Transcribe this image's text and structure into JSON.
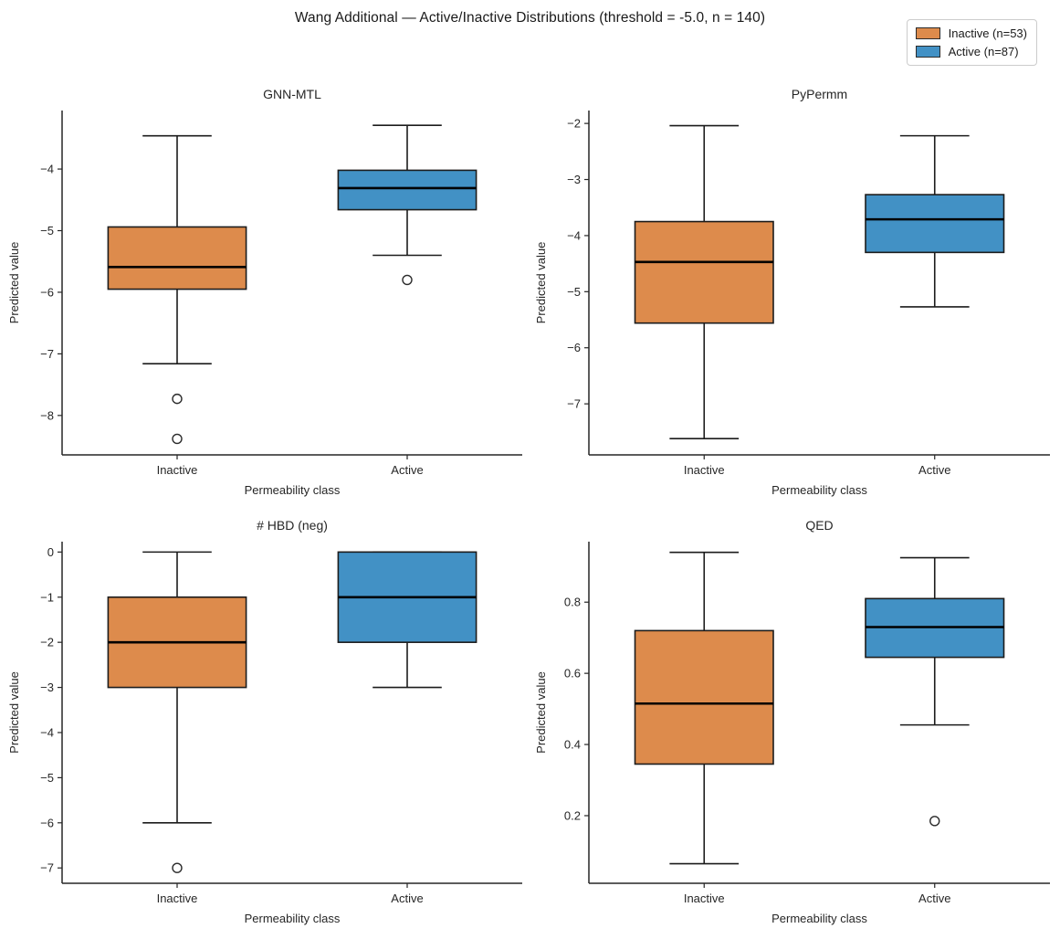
{
  "chart_data": {
    "type": "box",
    "suptitle": "Wang Additional — Active/Inactive Distributions  (threshold = -5.0, n = 140)",
    "legend": [
      {
        "label": "Inactive (n=53)",
        "color": "#dd8b4c"
      },
      {
        "label": "Active (n=87)",
        "color": "#4291c5"
      }
    ],
    "shared": {
      "xlabel": "Permeability class",
      "ylabel": "Predicted value",
      "categories": [
        "Inactive",
        "Active"
      ],
      "grid": false,
      "legend_position": "upper right"
    },
    "plots": [
      {
        "title": "GNN-MTL",
        "ylim": [
          -8.64,
          -3.05
        ],
        "yticks": [
          -4,
          -5,
          -6,
          -7,
          -8
        ],
        "boxes": [
          {
            "category": "Inactive",
            "whisker_low": -7.16,
            "q1": -5.95,
            "median": -5.59,
            "q3": -4.94,
            "whisker_high": -3.46,
            "outliers": [
              -7.73,
              -8.38
            ]
          },
          {
            "category": "Active",
            "whisker_low": -5.4,
            "q1": -4.66,
            "median": -4.31,
            "q3": -4.02,
            "whisker_high": -3.29,
            "outliers": [
              -5.8
            ]
          }
        ]
      },
      {
        "title": "PyPermm",
        "ylim": [
          -7.91,
          -1.77
        ],
        "yticks": [
          -2,
          -3,
          -4,
          -5,
          -6,
          -7
        ],
        "boxes": [
          {
            "category": "Inactive",
            "whisker_low": -7.62,
            "q1": -5.56,
            "median": -4.47,
            "q3": -3.75,
            "whisker_high": -2.04,
            "outliers": []
          },
          {
            "category": "Active",
            "whisker_low": -5.27,
            "q1": -4.3,
            "median": -3.71,
            "q3": -3.27,
            "whisker_high": -2.22,
            "outliers": []
          }
        ]
      },
      {
        "title": "# HBD (neg)",
        "ylim": [
          -7.34,
          0.23
        ],
        "yticks": [
          0,
          -1,
          -2,
          -3,
          -4,
          -5,
          -6,
          -7
        ],
        "boxes": [
          {
            "category": "Inactive",
            "whisker_low": -6,
            "q1": -3,
            "median": -2,
            "q3": -1,
            "whisker_high": 0,
            "outliers": [
              -7
            ]
          },
          {
            "category": "Active",
            "whisker_low": -3,
            "q1": -2,
            "median": -1,
            "q3": 0,
            "whisker_high": 0,
            "outliers": []
          }
        ]
      },
      {
        "title": "QED",
        "ylim": [
          0.01,
          0.97
        ],
        "yticks": [
          0.2,
          0.4,
          0.6,
          0.8
        ],
        "boxes": [
          {
            "category": "Inactive",
            "whisker_low": 0.065,
            "q1": 0.345,
            "median": 0.515,
            "q3": 0.72,
            "whisker_high": 0.94,
            "outliers": []
          },
          {
            "category": "Active",
            "whisker_low": 0.455,
            "q1": 0.645,
            "median": 0.73,
            "q3": 0.81,
            "whisker_high": 0.925,
            "outliers": [
              0.185
            ]
          }
        ]
      }
    ]
  }
}
